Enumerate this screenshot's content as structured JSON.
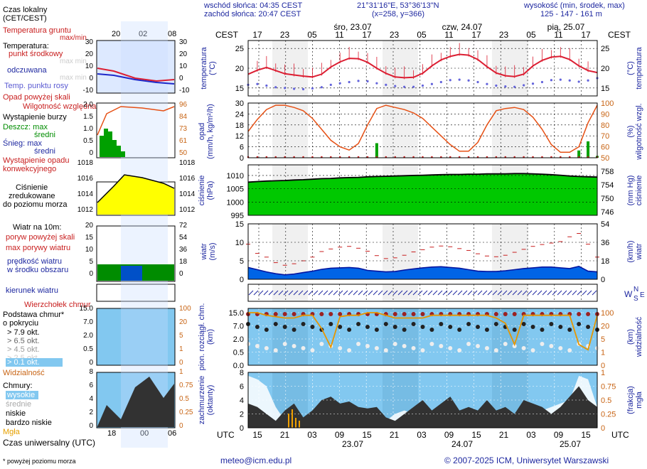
{
  "header": {
    "sunrise": "wschód słońca: 04:35 CEST",
    "sunset": "zachód słońca: 20:47 CEST",
    "coords": "21°31'16\"E, 53°36'13\"N",
    "grid": "(x=258,  y=366)",
    "altitude_label": "wysokość (min, środek, max)",
    "altitude_values": "125 - 147 - 161 m"
  },
  "days": [
    {
      "label": "śro, 23.07",
      "date": "23.07"
    },
    {
      "label": "czw, 24.07",
      "date": "24.07"
    },
    {
      "label": "pią, 25.07",
      "date": "25.07"
    }
  ],
  "cest_label": "CEST",
  "utc_label": "UTC",
  "cest_hours": [
    "17",
    "23",
    "05",
    "11",
    "17",
    "23",
    "05",
    "11",
    "17",
    "23",
    "05",
    "11",
    "17"
  ],
  "utc_hours": [
    "15",
    "21",
    "03",
    "09",
    "15",
    "21",
    "03",
    "09",
    "15",
    "21",
    "03",
    "09",
    "15"
  ],
  "legend": {
    "local_time": "Czas lokalny",
    "local_time_sub": "(CET/CEST)",
    "local_hours": [
      "20",
      "02",
      "08"
    ],
    "utc_time": "Czas uniwersalny (UTC)",
    "utc_hours": [
      "18",
      "00",
      "06"
    ],
    "soil_temp": "Temperatura gruntu",
    "soil_temp_sub": "max/min",
    "temp": "Temperatura:",
    "temp_mid": "punkt środkowy",
    "temp_maxmin": "max min",
    "felt": "odczuwana",
    "felt_sub": "max min",
    "dew": "Temp. punktu rosy",
    "rain_over": "Opad powyżej skali",
    "humidity": "Wilgotność względna",
    "storm": "Wystąpienie burzy",
    "rain": "Deszcz: max",
    "rain_mean": "średni",
    "snow": "Śnieg: max",
    "snow_mean": "średni",
    "conv": "Wystąpienie opadu",
    "conv_sub": "konwekcyjnego",
    "pressure": "Ciśnienie",
    "pressure_sub1": "zredukowane",
    "pressure_sub2": "do poziomu morza",
    "wind10": "Wiatr na 10m:",
    "gust_over": "poryw powyżej skali",
    "gust_max": "max porywy wiatru",
    "wind_mean": "prędkość wiatru",
    "wind_mean_sub": "w środku obszaru",
    "wind_dir": "kierunek wiatru",
    "cloud_top": "Wierzchołek chmur",
    "cloud_base": "Podstawa chmur*",
    "cloud_base_sub": "o pokryciu",
    "okt": [
      "> 7.9 okt.",
      "> 6.5 okt.",
      "> 4.5 okt.",
      "> 2.5 okt.",
      "> 0.1 okt."
    ],
    "visibility": "Widzialność",
    "clouds": "Chmury:",
    "cl_high": "wysokie",
    "cl_mid": "średnie",
    "cl_low": "niskie",
    "cl_vlow": "bardzo niskie",
    "fog": "Mgła",
    "footnote": "* powyżej poziomu morza",
    "temp_axis_l": [
      "30",
      "20",
      "10",
      "0",
      "-10"
    ],
    "temp_axis_r": [
      "30",
      "20",
      "10",
      "0",
      "-10"
    ],
    "rain_axis_l": [
      "2.0",
      "1.5",
      "1.0",
      "0.5",
      "0"
    ],
    "rain_axis_r": [
      "96",
      "84",
      "73",
      "61",
      "50"
    ],
    "press_axis_l": [
      "1018",
      "1016",
      "1014",
      "1012"
    ],
    "press_axis_r": [
      "1018",
      "1016",
      "1014",
      "1012"
    ],
    "wind_axis_l": [
      "20",
      "15",
      "10",
      "5",
      "0"
    ],
    "wind_axis_r": [
      "72",
      "54",
      "36",
      "18",
      "0"
    ],
    "cloud_axis_l": [
      "15.0",
      "7.0",
      "2.0",
      "0.5",
      "0"
    ],
    "cloud_axis_r": [
      "100",
      "20",
      "5",
      "1",
      "0"
    ],
    "cov_axis_l": [
      "8",
      "6",
      "4",
      "2",
      "0"
    ],
    "cov_axis_r": [
      "1",
      "0.75",
      "0.5",
      "0.25",
      "0"
    ]
  },
  "panel_titles": {
    "temp_l": "temperatura",
    "temp_l2": "(°C)",
    "temp_r": "temperatura",
    "temp_r2": "(°C)",
    "rain_l": "opad",
    "rain_l2": "(mm/h, kg/m²/h)",
    "rain_r": "wilgotność wzgl.",
    "rain_r2": "(%)",
    "press_l": "ciśnienie",
    "press_l2": "(hPa)",
    "press_r": "ciśnienie",
    "press_r2": "(mm Hg)",
    "wind_l": "wiatr",
    "wind_l2": "(m/s)",
    "wind_r": "wiatr",
    "wind_r2": "(km/h)",
    "cloud_l": "pion. rozciągł. chm.",
    "cloud_l2": "(km)",
    "cloud_r": "widzialność",
    "cloud_r2": "(km)",
    "cov_l": "zachmurzenie",
    "cov_l2": "(oktanty)",
    "cov_r": "mgła",
    "cov_r2": "(frakcja)",
    "dir_w": "W",
    "dir_n": "N",
    "dir_s": "S",
    "dir_e": "E"
  },
  "footer": {
    "email": "meteo@icm.edu.pl",
    "copyright": "© 2007-2025 ICM, Uniwersytet Warszawski"
  },
  "colors": {
    "temp": "#dc1e32",
    "dew": "#6464dc",
    "humidity": "#e65014",
    "pressure": "#00c800",
    "wind": "#0064e6",
    "night": "#e6e6e6",
    "sky": "#82c8f0",
    "cloud_dark": "#323232"
  },
  "chart_data": [
    {
      "type": "line",
      "title": "temperatura (°C)",
      "ylim": [
        13,
        27
      ],
      "yticks": [
        15,
        20,
        25
      ],
      "series": [
        {
          "name": "temperatura",
          "values": [
            18.5,
            19.5,
            20.2,
            19.4,
            18.6,
            18.3,
            18.0,
            17.8,
            18.5,
            20.3,
            21.6,
            22.5,
            22.4,
            21.5,
            20.0,
            18.7,
            17.8,
            17.6,
            17.7,
            18.7,
            20.6,
            22.1,
            23.0,
            23.5,
            23.3,
            22.2,
            20.4,
            18.8,
            18.1,
            17.9,
            18.5,
            20.6,
            22.0,
            22.8,
            23.0,
            22.2,
            20.6,
            19.4,
            18.9
          ]
        },
        {
          "name": "temp. punktu rosy",
          "values": [
            15.8,
            16.0,
            15.6,
            15.2,
            15.0,
            14.8,
            14.7,
            14.9,
            15.2,
            15.8,
            16.2,
            16.5,
            16.8,
            16.7,
            16.2,
            15.8,
            15.5,
            15.3,
            15.3,
            15.6,
            16.0,
            16.5,
            17.0,
            17.1,
            16.9,
            16.5,
            16.0,
            15.6,
            15.4,
            15.3,
            15.7,
            16.1,
            16.5,
            17.0,
            17.1,
            16.9,
            16.6,
            16.9,
            17.5
          ]
        }
      ]
    },
    {
      "type": "bar",
      "title": "opad (mm/h) / wilgotność wzgl. (%)",
      "ylim": [
        0,
        30
      ],
      "yticks": [
        0,
        6,
        12,
        18,
        24,
        30
      ],
      "y2lim": [
        50,
        100
      ],
      "y2ticks": [
        50,
        60,
        70,
        80,
        90,
        100
      ],
      "series": [
        {
          "name": "wilgotność względna",
          "values": [
            74,
            85,
            94,
            98,
            98,
            96,
            93,
            86,
            76,
            66,
            60,
            57,
            63,
            80,
            95,
            98,
            96,
            94,
            91,
            86,
            78,
            70,
            62,
            56,
            56,
            64,
            80,
            93,
            95,
            96,
            94,
            87,
            76,
            62,
            55,
            55,
            60,
            82,
            98
          ]
        },
        {
          "name": "opad max",
          "values": [
            0,
            0,
            0,
            0,
            0,
            0,
            0,
            0,
            0,
            0,
            0,
            0,
            0,
            0,
            8,
            0,
            0,
            0,
            0,
            0,
            0,
            0,
            0,
            0,
            0,
            0,
            0,
            0,
            0,
            0,
            0,
            0,
            0,
            0,
            0,
            0,
            4,
            9,
            1
          ]
        }
      ]
    },
    {
      "type": "area",
      "title": "ciśnienie (hPa)",
      "ylim": [
        995,
        1014
      ],
      "yticks": [
        995,
        1000,
        1005,
        1010
      ],
      "series": [
        {
          "name": "ciśnienie",
          "values": [
            1007.5,
            1007.7,
            1007.9,
            1008.0,
            1008.1,
            1008.3,
            1008.4,
            1008.6,
            1008.8,
            1008.9,
            1009.1,
            1009.2,
            1009.3,
            1009.5,
            1009.6,
            1009.7,
            1009.8,
            1009.9,
            1010.0,
            1010.1,
            1010.2,
            1010.3,
            1010.4,
            1010.4,
            1010.5,
            1010.5,
            1010.6,
            1010.6,
            1010.6,
            1010.7,
            1010.7,
            1010.6,
            1010.5,
            1010.3,
            1010.1,
            1009.8,
            1009.6,
            1009.5,
            1009.4
          ]
        }
      ]
    },
    {
      "type": "area",
      "title": "wiatr (m/s)",
      "ylim": [
        0,
        15
      ],
      "yticks": [
        0,
        5,
        10,
        15
      ],
      "y2ticks": [
        0,
        18,
        36,
        54
      ],
      "series": [
        {
          "name": "prędkość wiatru",
          "values": [
            3.2,
            2.6,
            2.0,
            1.5,
            1.2,
            1.4,
            1.8,
            2.2,
            2.7,
            3.0,
            3.1,
            3.2,
            3.0,
            2.4,
            2.2,
            2.0,
            2.1,
            2.5,
            2.8,
            3.1,
            3.3,
            3.4,
            3.2,
            3.0,
            2.6,
            2.2,
            2.1,
            2.1,
            2.3,
            2.6,
            2.9,
            3.1,
            3.3,
            3.3,
            3.1,
            2.9,
            3.5,
            2.2,
            2.0
          ]
        },
        {
          "name": "max porywy wiatru",
          "values": [
            9.5,
            7.0,
            6.0,
            4.5,
            3.8,
            4.2,
            5.0,
            6.0,
            7.5,
            8.2,
            8.7,
            8.9,
            8.4,
            7.6,
            6.4,
            5.6,
            5.8,
            6.5,
            7.4,
            8.0,
            8.7,
            9.0,
            8.8,
            8.3,
            7.8,
            6.9,
            6.3,
            6.1,
            6.5,
            7.3,
            8.1,
            8.9,
            9.4,
            9.8,
            10.2,
            11.5,
            12.4,
            9.5,
            6.0
          ]
        }
      ]
    },
    {
      "type": "line",
      "title": "widzialność (km)",
      "ylim": [
        0,
        15
      ],
      "yticks": [
        0,
        0.5,
        2.0,
        7.0,
        15.0
      ],
      "y2ticks": [
        0,
        1,
        5,
        20,
        100
      ],
      "series": [
        {
          "name": "widzialność",
          "values": [
            32,
            30,
            28,
            27,
            26,
            26,
            28,
            28,
            18,
            4,
            27,
            28,
            28,
            30,
            30,
            28,
            26,
            26,
            26,
            26,
            28,
            28,
            28,
            28,
            28,
            28,
            28,
            26,
            22,
            6,
            28,
            28,
            28,
            28,
            28,
            28,
            6,
            2,
            28
          ]
        }
      ]
    },
    {
      "type": "area",
      "title": "zachmurzenie (oktanty)",
      "ylim": [
        0,
        8
      ],
      "yticks": [
        0,
        2,
        4,
        6,
        8
      ],
      "y2ticks": [
        0,
        0.25,
        0.5,
        0.75,
        1
      ],
      "series": [
        {
          "name": "chmury niskie",
          "values": [
            3.5,
            3.0,
            2.0,
            1.0,
            2.5,
            3.5,
            1.5,
            2.5,
            4.0,
            4.5,
            3.5,
            3.8,
            3.0,
            2.8,
            3.0,
            1.5,
            1.0,
            2.0,
            3.0,
            4.0,
            2.5,
            3.5,
            4.5,
            2.5,
            3.0,
            2.5,
            4.0,
            2.5,
            3.0,
            2.0,
            4.0,
            3.5,
            3.0,
            2.0,
            3.0,
            4.5,
            6.0,
            4.0,
            3.0
          ]
        },
        {
          "name": "chmury wysokie",
          "values": [
            7.5,
            7.0,
            6.0,
            3.0,
            1.0,
            0.5,
            0.5,
            0.5,
            1.0,
            1.5,
            2.0,
            1.0,
            0.5,
            0.5,
            0.5,
            1.0,
            2.0,
            2.5,
            2.0,
            1.5,
            1.0,
            0.5,
            0.5,
            0.5,
            0.5,
            1.0,
            1.0,
            0.5,
            1.0,
            1.5,
            2.0,
            2.5,
            2.5,
            3.0,
            3.5,
            4.0,
            7.5,
            7.0,
            3.0
          ]
        }
      ]
    }
  ]
}
